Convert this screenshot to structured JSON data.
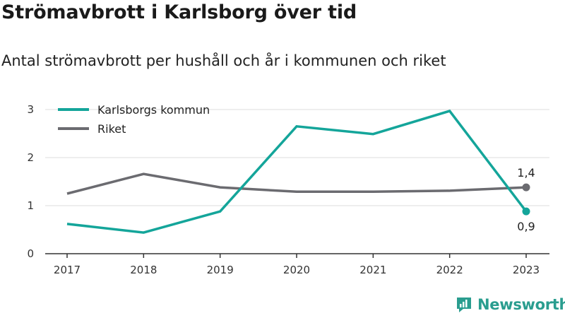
{
  "header": {
    "title": "Strömavbrott i Karlsborg över tid",
    "subtitle": "Antal strömavbrott per hushåll och år i kommunen och riket"
  },
  "brand": {
    "name": "Newsworthy",
    "color": "#2a9d8f",
    "icon": "newsworthy-logo-icon"
  },
  "chart_data": {
    "type": "line",
    "categories": [
      "2017",
      "2018",
      "2019",
      "2020",
      "2021",
      "2022",
      "2023"
    ],
    "ylim": [
      0,
      3
    ],
    "yticks": [
      "0",
      "1",
      "2",
      "3"
    ],
    "grid": true,
    "legend_position": "top-left",
    "series": [
      {
        "name": "Karlsborgs kommun",
        "color": "#14a59a",
        "values": [
          0.62,
          0.44,
          0.88,
          2.65,
          2.49,
          2.97,
          0.88
        ],
        "end_label": "0,9"
      },
      {
        "name": "Riket",
        "color": "#6b6b70",
        "values": [
          1.25,
          1.66,
          1.38,
          1.29,
          1.29,
          1.31,
          1.38
        ],
        "end_label": "1,4"
      }
    ]
  }
}
